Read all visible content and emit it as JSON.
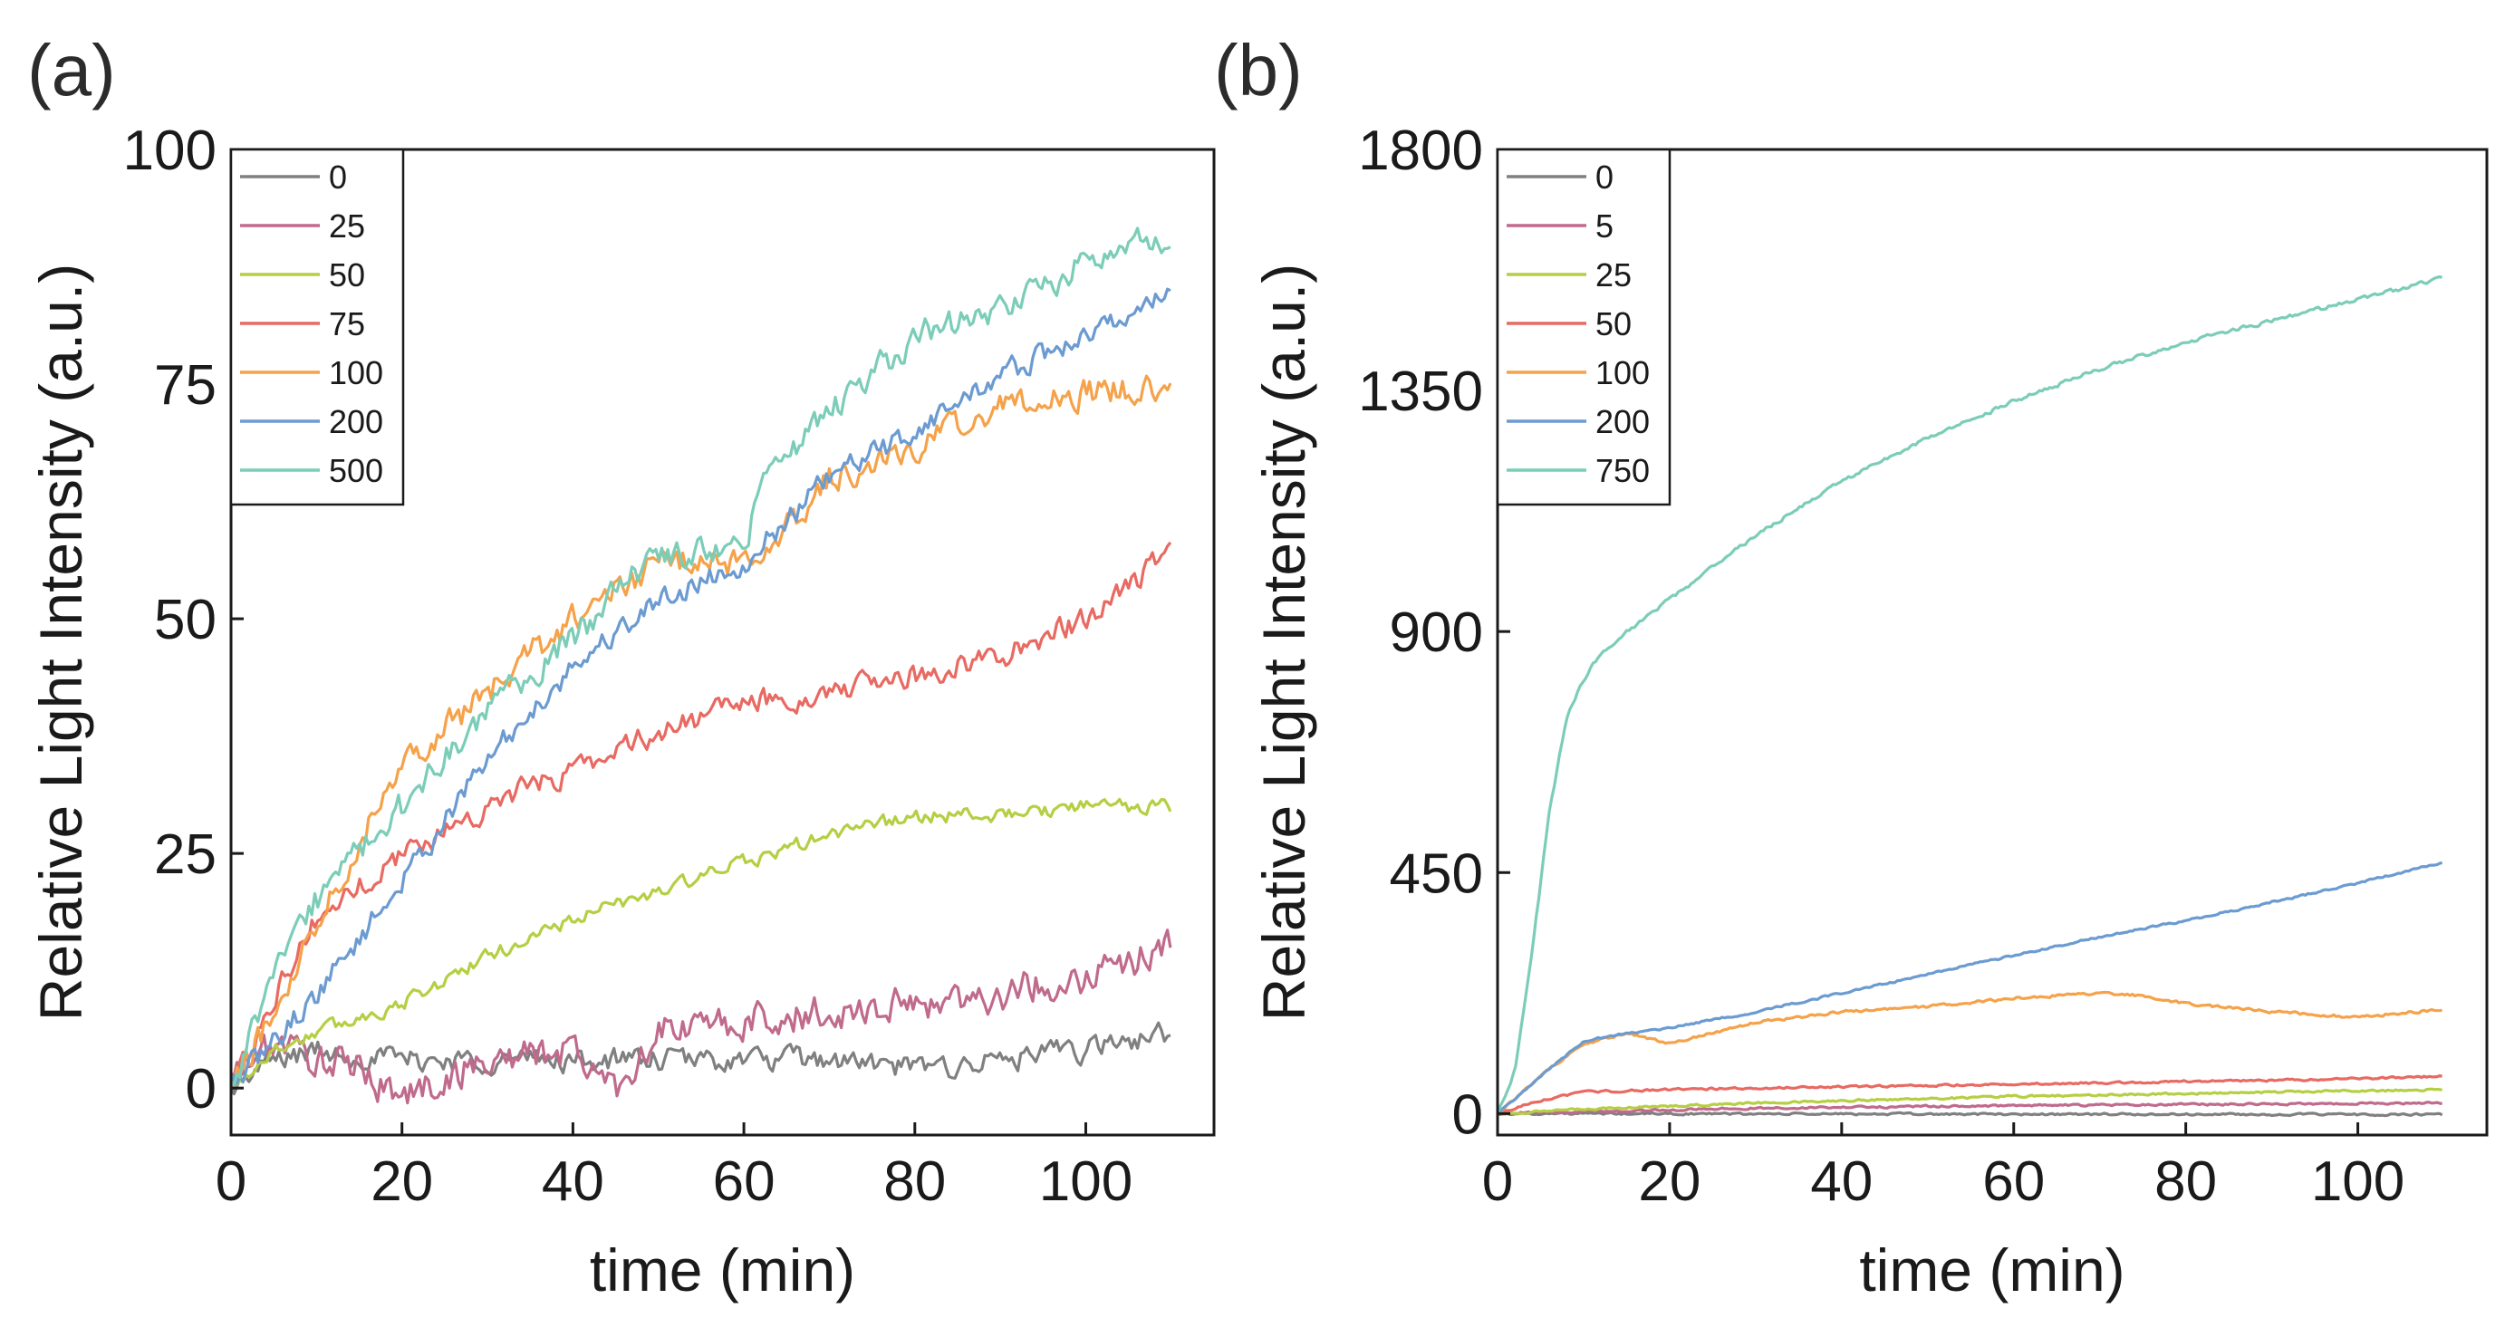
{
  "figure": {
    "panels": [
      "(a)",
      "(b)"
    ]
  },
  "chart_data": [
    {
      "type": "line",
      "panel_label": "(a)",
      "xlabel": "time (min)",
      "ylabel": "Relative Light Intensity (a.u.)",
      "xlim": [
        0,
        115
      ],
      "ylim": [
        -5,
        100
      ],
      "xticks": [
        0,
        20,
        40,
        60,
        80,
        100
      ],
      "yticks": [
        0,
        25,
        50,
        75,
        100
      ],
      "legend_position": "top-left",
      "noise_amplitude": 2.0,
      "series": [
        {
          "name": "0",
          "color": "#808080",
          "noise": 2.0,
          "x": [
            0,
            5,
            10,
            20,
            30,
            40,
            50,
            60,
            70,
            80,
            90,
            100,
            110
          ],
          "y": [
            0,
            3,
            4,
            3,
            3,
            3,
            3,
            3,
            3,
            2,
            3,
            4,
            6
          ]
        },
        {
          "name": "25",
          "color": "#c06a8c",
          "noise": 3.0,
          "x": [
            0,
            5,
            10,
            15,
            20,
            30,
            40,
            45,
            50,
            60,
            70,
            80,
            90,
            100,
            110
          ],
          "y": [
            1,
            5,
            3,
            2,
            -1,
            3,
            4,
            0,
            6,
            7,
            8,
            9,
            10,
            12,
            15
          ]
        },
        {
          "name": "50",
          "color": "#b5cf44",
          "noise": 1.2,
          "x": [
            0,
            5,
            10,
            20,
            30,
            40,
            50,
            60,
            70,
            80,
            90,
            100,
            110
          ],
          "y": [
            0,
            4,
            6,
            9,
            14,
            18,
            21,
            24,
            27,
            29,
            29,
            30,
            30
          ]
        },
        {
          "name": "75",
          "color": "#e86a62",
          "noise": 2.0,
          "x": [
            0,
            5,
            10,
            20,
            30,
            40,
            50,
            60,
            70,
            80,
            90,
            100,
            110
          ],
          "y": [
            0,
            10,
            18,
            25,
            30,
            34,
            38,
            41,
            42,
            44,
            46,
            50,
            57
          ]
        },
        {
          "name": "100",
          "color": "#f5a24a",
          "noise": 2.5,
          "x": [
            0,
            5,
            10,
            20,
            30,
            40,
            50,
            60,
            65,
            70,
            80,
            90,
            100,
            110
          ],
          "y": [
            0,
            8,
            18,
            35,
            42,
            50,
            56,
            56,
            60,
            65,
            68,
            73,
            74,
            75
          ]
        },
        {
          "name": "200",
          "color": "#6b9bd1",
          "noise": 2.0,
          "x": [
            0,
            5,
            10,
            20,
            30,
            40,
            50,
            60,
            70,
            80,
            90,
            100,
            110
          ],
          "y": [
            0,
            5,
            10,
            22,
            35,
            45,
            52,
            56,
            65,
            70,
            76,
            80,
            85
          ]
        },
        {
          "name": "500",
          "color": "#7ccdb8",
          "noise": 2.5,
          "x": [
            0,
            5,
            10,
            20,
            30,
            40,
            50,
            60,
            62,
            70,
            80,
            90,
            100,
            110
          ],
          "y": [
            0,
            12,
            20,
            30,
            40,
            48,
            57,
            57,
            65,
            72,
            80,
            83,
            88,
            91
          ]
        }
      ]
    },
    {
      "type": "line",
      "panel_label": "(b)",
      "xlabel": "time (min)",
      "ylabel": "Relative Light Intensity (a.u.)",
      "xlim": [
        0,
        115
      ],
      "ylim": [
        -40,
        1800
      ],
      "xticks": [
        0,
        20,
        40,
        60,
        80,
        100
      ],
      "yticks": [
        0,
        450,
        900,
        1350,
        1800
      ],
      "legend_position": "top-left",
      "series": [
        {
          "name": "0",
          "color": "#808080",
          "noise": 3,
          "x": [
            0,
            110
          ],
          "y": [
            0,
            -2
          ]
        },
        {
          "name": "5",
          "color": "#c06a8c",
          "noise": 3,
          "x": [
            0,
            10,
            30,
            60,
            90,
            110
          ],
          "y": [
            0,
            4,
            10,
            15,
            18,
            20
          ]
        },
        {
          "name": "25",
          "color": "#b5cf44",
          "noise": 3,
          "x": [
            0,
            10,
            30,
            60,
            90,
            110
          ],
          "y": [
            0,
            8,
            20,
            32,
            40,
            45
          ]
        },
        {
          "name": "50",
          "color": "#e86a62",
          "noise": 3,
          "x": [
            0,
            5,
            10,
            20,
            40,
            60,
            80,
            100,
            110
          ],
          "y": [
            0,
            25,
            40,
            45,
            50,
            55,
            60,
            65,
            70
          ]
        },
        {
          "name": "100",
          "color": "#f5a24a",
          "noise": 4,
          "x": [
            0,
            5,
            10,
            15,
            20,
            30,
            40,
            50,
            60,
            70,
            75,
            80,
            90,
            100,
            110
          ],
          "y": [
            0,
            70,
            130,
            150,
            130,
            170,
            190,
            200,
            215,
            225,
            220,
            205,
            190,
            180,
            195
          ]
        },
        {
          "name": "200",
          "color": "#6b9bd1",
          "noise": 3,
          "x": [
            0,
            5,
            10,
            15,
            20,
            30,
            40,
            50,
            60,
            70,
            80,
            90,
            100,
            110
          ],
          "y": [
            0,
            70,
            135,
            150,
            160,
            190,
            225,
            260,
            295,
            330,
            360,
            395,
            430,
            470
          ]
        },
        {
          "name": "750",
          "color": "#7ccdb8",
          "noise": 6,
          "x": [
            0,
            2,
            4,
            6,
            8,
            10,
            12,
            15,
            20,
            30,
            40,
            50,
            60,
            70,
            80,
            90,
            100,
            110
          ],
          "y": [
            0,
            80,
            300,
            560,
            740,
            810,
            860,
            900,
            960,
            1080,
            1180,
            1260,
            1330,
            1390,
            1440,
            1480,
            1520,
            1560
          ]
        }
      ]
    }
  ]
}
